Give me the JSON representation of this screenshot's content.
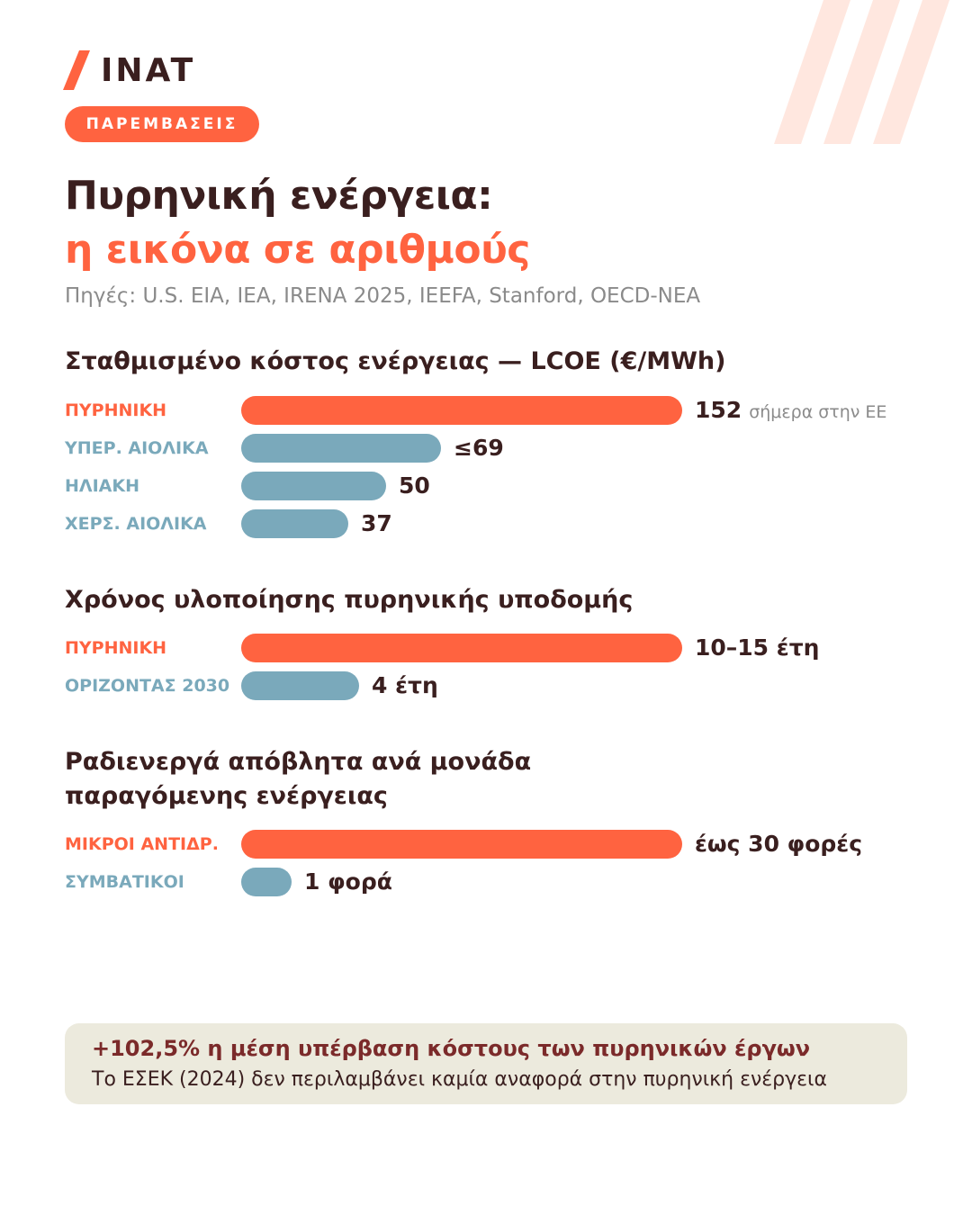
{
  "brand": {
    "logo_text": "INAT"
  },
  "badge": {
    "label": "ΠΑΡΕΜΒΑΣΕΙΣ"
  },
  "title": {
    "line1": "Πυρηνική ενέργεια:",
    "line2": "η εικόνα σε αριθμούς"
  },
  "sources": "Πηγές: U.S. EIA, IEA, IRENA 2025, IEEFA, Stanford, OECD-NEA",
  "colors": {
    "accent": "#ff6340",
    "secondary": "#7aa9bb",
    "dark": "#3a1f1f",
    "callout_bg": "#eceadd",
    "callout_text": "#7b2a2a"
  },
  "chart_data": [
    {
      "type": "bar",
      "title": "Σταθμισμένο κόστος ενέργειας — LCOE (€/MWh)",
      "categories": [
        "ΠΥΡΗΝΙΚΗ",
        "ΥΠΕΡ. ΑΙΟΛΙΚΑ",
        "ΗΛΙΑΚΗ",
        "ΧΕΡΣ. ΑΙΟΛΙΚΑ"
      ],
      "values": [
        152,
        69,
        50,
        37
      ],
      "value_labels": [
        "152",
        "≤69",
        "50",
        "37"
      ],
      "notes": [
        "σήμερα στην ΕΕ",
        "",
        "",
        ""
      ],
      "highlight": [
        true,
        false,
        false,
        false
      ],
      "orientation": "horizontal"
    },
    {
      "type": "bar",
      "title": "Χρόνος υλοποίησης πυρηνικής υποδομής",
      "categories": [
        "ΠΥΡΗΝΙΚΗ",
        "ΟΡΙΖΟΝΤΑΣ 2030"
      ],
      "values": [
        15,
        4
      ],
      "value_labels": [
        "10–15 έτη",
        "4 έτη"
      ],
      "notes": [
        "",
        ""
      ],
      "highlight": [
        true,
        false
      ],
      "orientation": "horizontal"
    },
    {
      "type": "bar",
      "title_lines": [
        "Ραδιενεργά απόβλητα ανά μονάδα",
        "παραγόμενης ενέργειας"
      ],
      "categories": [
        "ΜΙΚΡΟΙ ΑΝΤΙΔΡ.",
        "ΣΥΜΒΑΤΙΚΟΙ"
      ],
      "values": [
        30,
        1
      ],
      "value_labels": [
        "έως 30 φορές",
        "1 φορά"
      ],
      "notes": [
        "",
        ""
      ],
      "highlight": [
        true,
        false
      ],
      "orientation": "horizontal"
    }
  ],
  "callout": {
    "headline": "+102,5% η μέση υπέρβαση κόστους των πυρηνικών έργων",
    "text": "Το ΕΣΕΚ (2024) δεν περιλαμβάνει καμία αναφορά στην πυρηνική ενέργεια"
  }
}
